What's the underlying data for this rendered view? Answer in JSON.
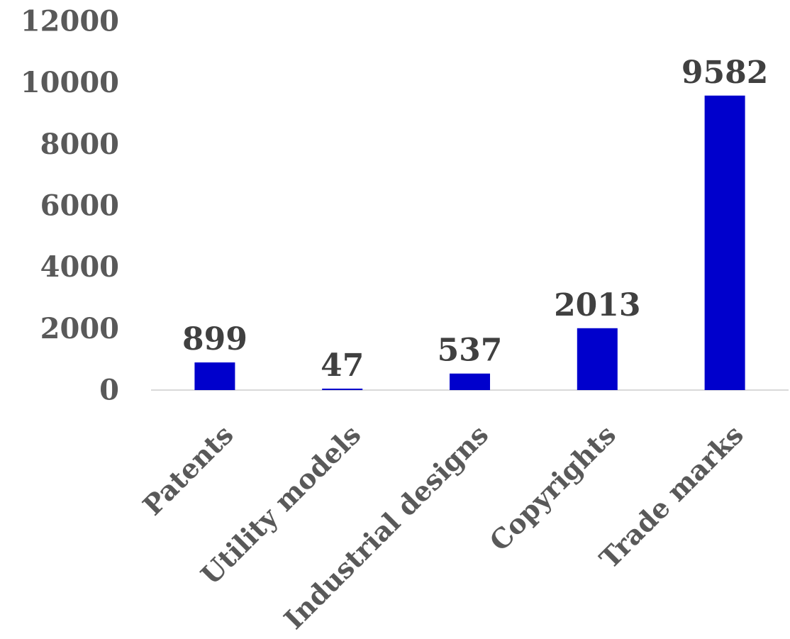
{
  "chart_data": {
    "type": "bar",
    "title": "",
    "xlabel": "",
    "ylabel": "",
    "categories": [
      "Patents",
      "Utility models",
      "Industrial designs",
      "Copyrights",
      "Trade marks"
    ],
    "values": [
      899,
      47,
      537,
      2013,
      9582
    ],
    "data_labels": [
      "899",
      "47",
      "537",
      "2013",
      "9582"
    ],
    "ylim": [
      0,
      12000
    ],
    "yticks": [
      0,
      2000,
      4000,
      6000,
      8000,
      10000,
      12000
    ],
    "ytick_labels": [
      "0",
      "2000",
      "4000",
      "6000",
      "8000",
      "10000",
      "12000"
    ],
    "grid": false,
    "legend": "none",
    "colors": {
      "bar": "#0000CC",
      "axis": "#d9d9d9",
      "tick_text": "#595959",
      "data_label_text": "#404040"
    }
  }
}
